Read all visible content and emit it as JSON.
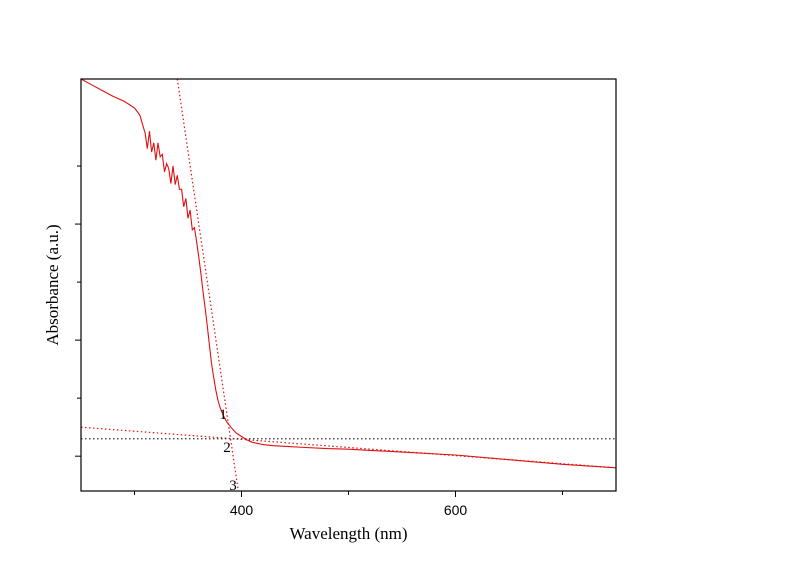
{
  "chart_data": {
    "type": "line",
    "title": "",
    "xlabel": "Wavelength (nm)",
    "ylabel": "Absorbance (a.u.)",
    "xlim": [
      250,
      750
    ],
    "ylim": [
      -0.3,
      3.25
    ],
    "x_major_ticks": [
      400,
      600
    ],
    "x_minor_ticks": [
      300,
      500,
      700
    ],
    "y_major_ticks": [
      0,
      1,
      2
    ],
    "y_minor_ticks": [
      0.5,
      1.5,
      2.5
    ],
    "grid": false,
    "legend": "none",
    "series": [
      {
        "color": "#e01010",
        "x": [
          250,
          260,
          270,
          280,
          290,
          295,
          300,
          305,
          310,
          312,
          314,
          316,
          318,
          320,
          322,
          324,
          326,
          328,
          330,
          332,
          334,
          336,
          338,
          340,
          342,
          344,
          346,
          348,
          350,
          352,
          354,
          356,
          358,
          360,
          362,
          364,
          366,
          368,
          370,
          372,
          374,
          376,
          378,
          380,
          383,
          386,
          390,
          395,
          400,
          405,
          410,
          415,
          420,
          425,
          430,
          440,
          460,
          480,
          500,
          550,
          600,
          650,
          700,
          750
        ],
        "y": [
          3.25,
          3.2,
          3.15,
          3.1,
          3.06,
          3.03,
          3.0,
          2.94,
          2.78,
          2.65,
          2.8,
          2.62,
          2.7,
          2.55,
          2.7,
          2.58,
          2.6,
          2.45,
          2.52,
          2.48,
          2.35,
          2.5,
          2.34,
          2.42,
          2.3,
          2.3,
          2.15,
          2.22,
          2.05,
          2.12,
          1.95,
          1.97,
          1.85,
          1.72,
          1.58,
          1.42,
          1.28,
          1.12,
          0.96,
          0.8,
          0.68,
          0.57,
          0.48,
          0.42,
          0.35,
          0.3,
          0.25,
          0.2,
          0.17,
          0.14,
          0.12,
          0.11,
          0.1,
          0.095,
          0.09,
          0.085,
          0.075,
          0.065,
          0.06,
          0.035,
          0.01,
          -0.03,
          -0.07,
          -0.1
        ]
      }
    ],
    "reference_lines": [
      {
        "label": "1",
        "color": "#e01010",
        "style": "dotted",
        "x": [
          250,
          750
        ],
        "y": [
          0.25,
          -0.1
        ]
      },
      {
        "label": "2",
        "color": "#333333",
        "style": "dotted",
        "x": [
          250,
          750
        ],
        "y": [
          0.15,
          0.15
        ]
      },
      {
        "label": "3",
        "color": "#e01010",
        "style": "dotted",
        "x": [
          340,
          397
        ],
        "y": [
          3.25,
          -0.3
        ]
      }
    ]
  }
}
